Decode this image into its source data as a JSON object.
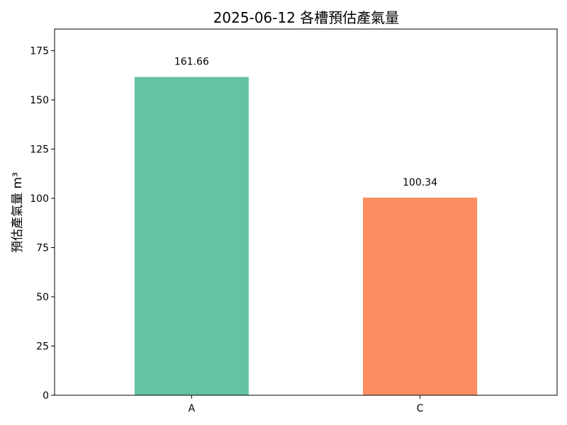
{
  "chart_data": {
    "type": "bar",
    "title": "2025-06-12 各槽預估產氣量",
    "xlabel": "",
    "ylabel": "預估產氣量 m³",
    "categories": [
      "A",
      "C"
    ],
    "values": [
      161.66,
      100.34
    ],
    "data_labels": [
      "161.66",
      "100.34"
    ],
    "colors": [
      "#66c2a5",
      "#fc8d62"
    ],
    "ylim": [
      0,
      186
    ],
    "yticks": [
      0,
      25,
      50,
      75,
      100,
      125,
      150,
      175
    ],
    "grid": false,
    "legend": "none"
  }
}
